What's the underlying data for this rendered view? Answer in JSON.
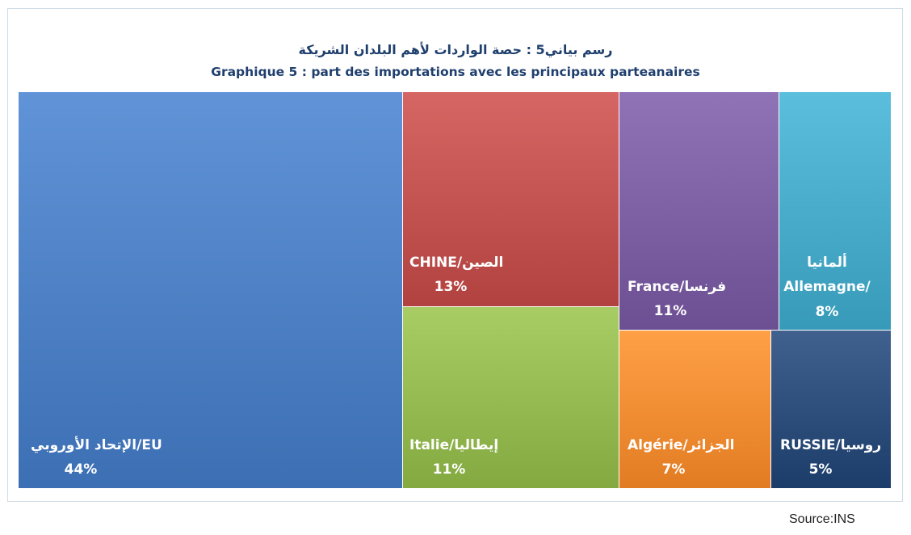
{
  "chart_data": {
    "type": "treemap",
    "title_ar": "رسم بياني5 :  حصة الواردات لأهم البلدان الشريكة",
    "title": "Graphique 5 : part des importations avec les principaux parteanaires",
    "unit": "%",
    "items": [
      {
        "label_lines": [
          "الإتحاد الأوروبي/EU"
        ],
        "value": 44,
        "value_label": "44%",
        "color": "#4a7dc1"
      },
      {
        "label_lines": [
          "CHINE/الصين"
        ],
        "value": 13,
        "value_label": "13%",
        "color": "#c0504d"
      },
      {
        "label_lines": [
          "Italie/إيطاليا"
        ],
        "value": 11,
        "value_label": "11%",
        "color": "#92b74f"
      },
      {
        "label_lines": [
          "France/فرنسا"
        ],
        "value": 11,
        "value_label": "11%",
        "color": "#7a5da0"
      },
      {
        "label_lines": [
          "Algérie/الجزائر"
        ],
        "value": 7,
        "value_label": "7%",
        "color": "#f08a30"
      },
      {
        "label_lines": [
          "ألمانيا",
          "Allemagne/"
        ],
        "value": 8,
        "value_label": "8%",
        "color": "#45a8c6"
      },
      {
        "label_lines": [
          "RUSSIE/روسيا"
        ],
        "value": 5,
        "value_label": "5%",
        "color": "#2a4a78"
      }
    ]
  },
  "source": "Source:INS"
}
